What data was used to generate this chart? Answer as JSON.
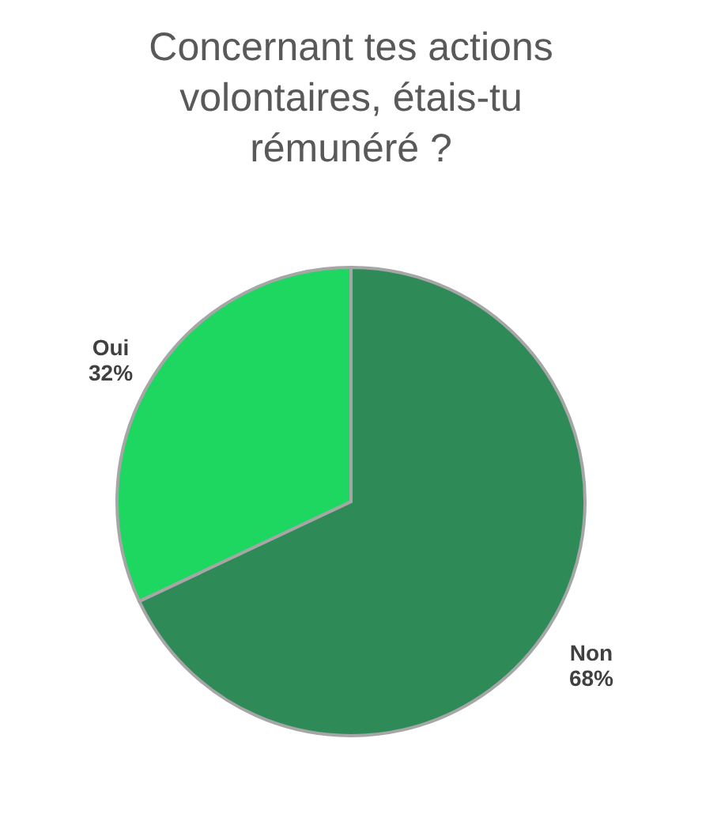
{
  "chart_data": {
    "type": "pie",
    "title": "Concernant tes actions volontaires, étais-tu rémunéré ?",
    "categories": [
      "Non",
      "Oui"
    ],
    "values": [
      68,
      32
    ],
    "value_labels": [
      "68%",
      "32%"
    ],
    "colors": [
      "#2e8b57",
      "#1ed760"
    ],
    "legend": false
  }
}
